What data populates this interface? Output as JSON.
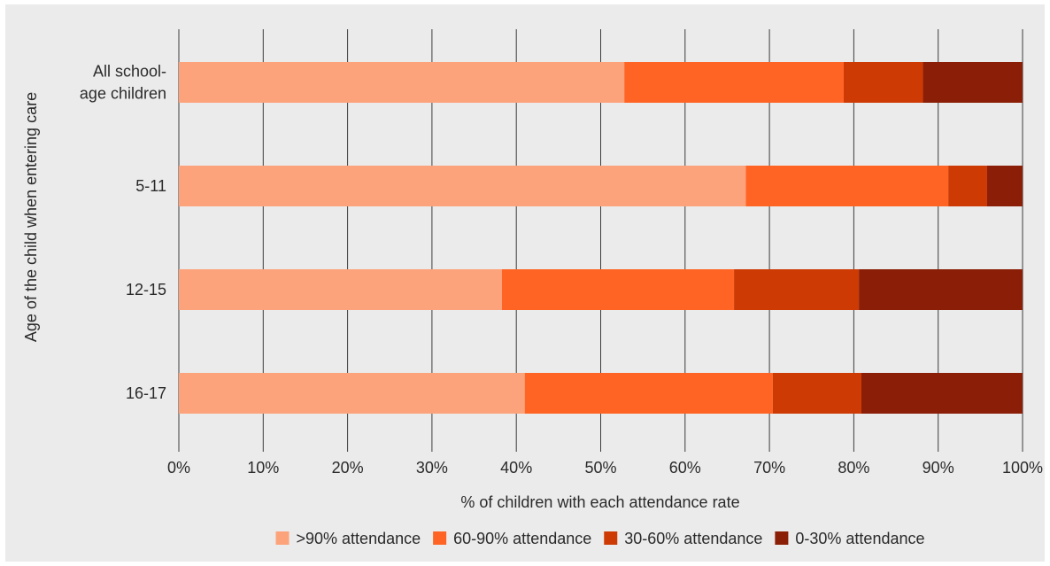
{
  "chart_data": {
    "type": "bar",
    "orientation": "horizontal",
    "stacked": true,
    "categories": [
      [
        "All school-",
        "age children"
      ],
      [
        "5-11"
      ],
      [
        "12-15"
      ],
      [
        "16-17"
      ]
    ],
    "series": [
      {
        "name": ">90% attendance",
        "color": "#fda37b",
        "values": [
          52.8,
          67.2,
          38.3,
          41.0
        ]
      },
      {
        "name": "60-90% attendance",
        "color": "#ff6424",
        "values": [
          26.0,
          24.0,
          27.5,
          29.4
        ]
      },
      {
        "name": "30-60% attendance",
        "color": "#cd3a04",
        "values": [
          9.4,
          4.6,
          14.8,
          10.5
        ]
      },
      {
        "name": "0-30% attendance",
        "color": "#8b1e06",
        "values": [
          11.8,
          4.2,
          19.4,
          19.1
        ]
      }
    ],
    "xlim": [
      0,
      100
    ],
    "xticks": [
      "0%",
      "10%",
      "20%",
      "30%",
      "40%",
      "50%",
      "60%",
      "70%",
      "80%",
      "90%",
      "100%"
    ],
    "xlabel": "% of children with each attendance rate",
    "ylabel": "Age of the child when entering care",
    "grid": "vertical",
    "legend_position": "bottom"
  }
}
